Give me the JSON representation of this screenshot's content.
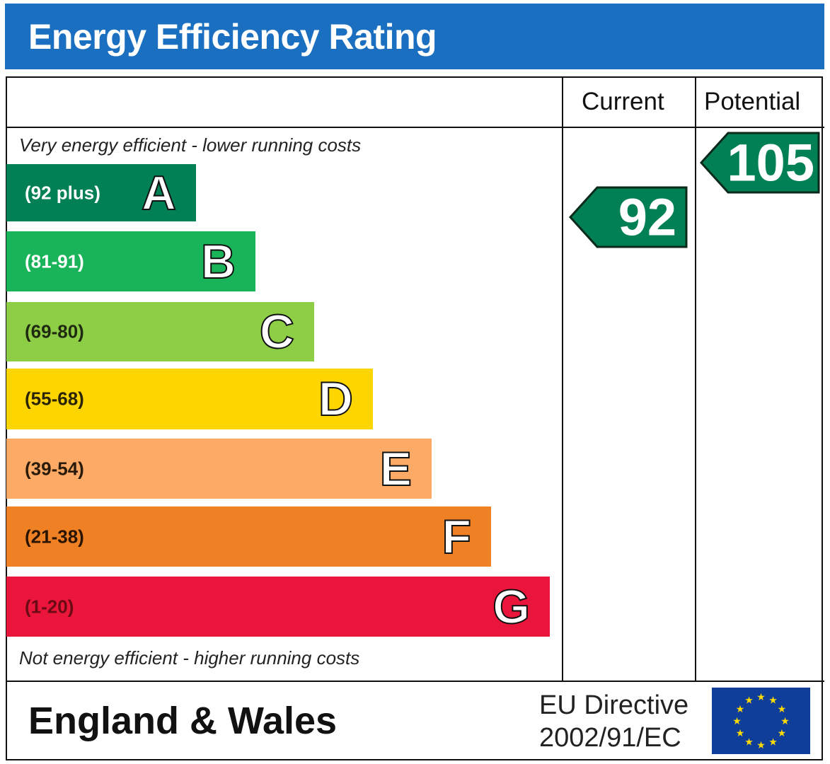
{
  "title": "Energy Efficiency Rating",
  "columns": {
    "current": "Current",
    "potential": "Potential"
  },
  "top_note": "Very energy efficient - lower running costs",
  "bottom_note": "Not energy efficient - higher running costs",
  "footer": {
    "region": "England & Wales",
    "directive_line1": "EU Directive",
    "directive_line2": "2002/91/EC",
    "flag_icon": "eu-flag-icon"
  },
  "colors": {
    "header": "#1a6fc0",
    "rating_arrow": "#008054"
  },
  "chart_data": {
    "type": "bar",
    "title": "Energy Efficiency Rating",
    "bands": [
      {
        "letter": "A",
        "range": "(92 plus)",
        "color": "#008054",
        "text_color": "#ffffff"
      },
      {
        "letter": "B",
        "range": "(81-91)",
        "color": "#19b459",
        "text_color": "#ffffff"
      },
      {
        "letter": "C",
        "range": "(69-80)",
        "color": "#8dce46",
        "text_color": "#1f2a10"
      },
      {
        "letter": "D",
        "range": "(55-68)",
        "color": "#ffd500",
        "text_color": "#2a2400"
      },
      {
        "letter": "E",
        "range": "(39-54)",
        "color": "#fcaa65",
        "text_color": "#2a1a0a"
      },
      {
        "letter": "F",
        "range": "(21-38)",
        "color": "#ef8023",
        "text_color": "#2a1400"
      },
      {
        "letter": "G",
        "range": "(1-20)",
        "color": "#e9153b",
        "text_color": "#6a0a14"
      }
    ],
    "current": {
      "value": "92",
      "band": "A"
    },
    "potential": {
      "value": "105",
      "band": "A"
    }
  }
}
